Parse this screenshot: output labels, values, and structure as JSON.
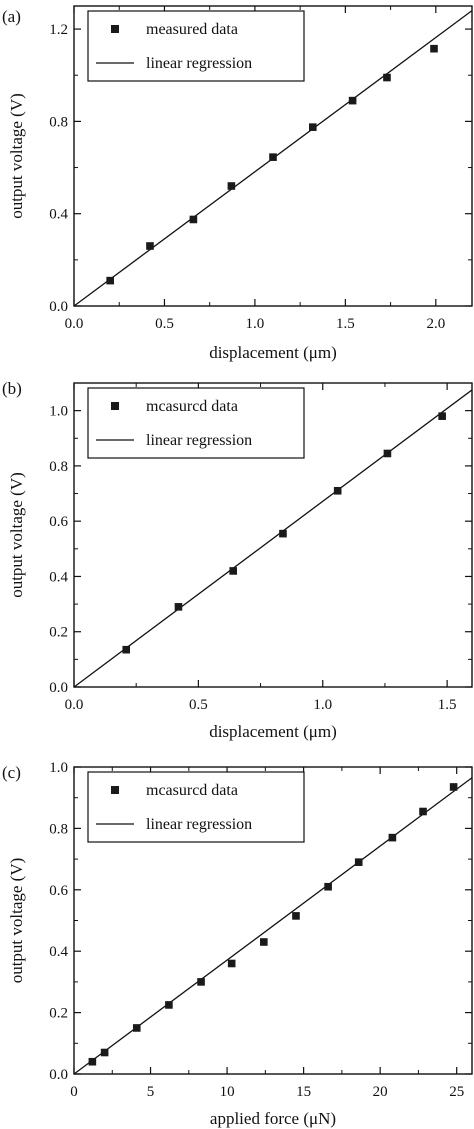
{
  "figure": {
    "colors": {
      "axis": "#111111",
      "marker": "#1a1a1a",
      "line": "#111111",
      "background": "#ffffff"
    }
  },
  "chart_data": [
    {
      "panel_label": "(a)",
      "type": "scatter",
      "xlabel": "displacement (μm)",
      "ylabel": "output voltage (V)",
      "xlim": [
        0.0,
        2.2
      ],
      "ylim": [
        0.0,
        1.3
      ],
      "xticks": [
        0.0,
        0.5,
        1.0,
        1.5,
        2.0
      ],
      "xtick_labels": [
        "0.0",
        "0.5",
        "1.0",
        "1.5",
        "2.0"
      ],
      "yticks": [
        0.0,
        0.4,
        0.8,
        1.2
      ],
      "ytick_labels": [
        "0.0",
        "0.4",
        "0.8",
        "1.2"
      ],
      "grid": false,
      "legend_position": "top-left",
      "legend": [
        {
          "label": "measured data",
          "kind": "marker"
        },
        {
          "label": "linear regression",
          "kind": "line"
        }
      ],
      "series": [
        {
          "name": "measured data",
          "kind": "scatter",
          "x": [
            0.2,
            0.42,
            0.66,
            0.87,
            1.1,
            1.32,
            1.54,
            1.73,
            1.99
          ],
          "y": [
            0.11,
            0.26,
            0.375,
            0.52,
            0.645,
            0.775,
            0.89,
            0.99,
            1.115
          ]
        },
        {
          "name": "linear regression",
          "kind": "line",
          "x": [
            0.0,
            2.2
          ],
          "y": [
            0.0,
            1.28
          ]
        }
      ]
    },
    {
      "panel_label": "(b)",
      "type": "scatter",
      "xlabel": "displacement (μm)",
      "ylabel": "output voltage (V)",
      "xlim": [
        0.0,
        1.6
      ],
      "ylim": [
        0.0,
        1.1
      ],
      "xticks": [
        0.0,
        0.5,
        1.0,
        1.5
      ],
      "xtick_labels": [
        "0.0",
        "0.5",
        "1.0",
        "1.5"
      ],
      "yticks": [
        0.0,
        0.2,
        0.4,
        0.6,
        0.8,
        1.0
      ],
      "ytick_labels": [
        "0.0",
        "0.2",
        "0.4",
        "0.6",
        "0.8",
        "1.0"
      ],
      "grid": false,
      "legend_position": "top-left",
      "legend": [
        {
          "label": "mcasurcd data",
          "kind": "marker"
        },
        {
          "label": "linear regression",
          "kind": "line"
        }
      ],
      "series": [
        {
          "name": "mcasurcd data",
          "kind": "scatter",
          "x": [
            0.21,
            0.42,
            0.64,
            0.84,
            1.06,
            1.26,
            1.48
          ],
          "y": [
            0.135,
            0.29,
            0.42,
            0.555,
            0.71,
            0.845,
            0.98
          ]
        },
        {
          "name": "linear regression",
          "kind": "line",
          "x": [
            0.0,
            1.6
          ],
          "y": [
            0.0,
            1.075
          ]
        }
      ]
    },
    {
      "panel_label": "(c)",
      "type": "scatter",
      "xlabel": "applied force (μN)",
      "ylabel": "output voltage (V)",
      "xlim": [
        0,
        26
      ],
      "ylim": [
        0.0,
        1.0
      ],
      "xticks": [
        0,
        5,
        10,
        15,
        20,
        25
      ],
      "xtick_labels": [
        "0",
        "5",
        "10",
        "15",
        "20",
        "25"
      ],
      "yticks": [
        0.0,
        0.2,
        0.4,
        0.6,
        0.8,
        1.0
      ],
      "ytick_labels": [
        "0.0",
        "0.2",
        "0.4",
        "0.6",
        "0.8",
        "1.0"
      ],
      "grid": false,
      "legend_position": "top-left",
      "legend": [
        {
          "label": "mcasurcd data",
          "kind": "marker"
        },
        {
          "label": "linear regression",
          "kind": "line"
        }
      ],
      "series": [
        {
          "name": "mcasurcd data",
          "kind": "scatter",
          "x": [
            1.2,
            2.0,
            4.1,
            6.2,
            8.3,
            10.3,
            12.4,
            14.5,
            16.6,
            18.6,
            20.8,
            22.8,
            24.8
          ],
          "y": [
            0.04,
            0.07,
            0.15,
            0.225,
            0.3,
            0.36,
            0.43,
            0.515,
            0.61,
            0.69,
            0.77,
            0.855,
            0.935
          ]
        },
        {
          "name": "linear regression",
          "kind": "line",
          "x": [
            0,
            26
          ],
          "y": [
            0.0,
            0.965
          ]
        }
      ]
    }
  ]
}
